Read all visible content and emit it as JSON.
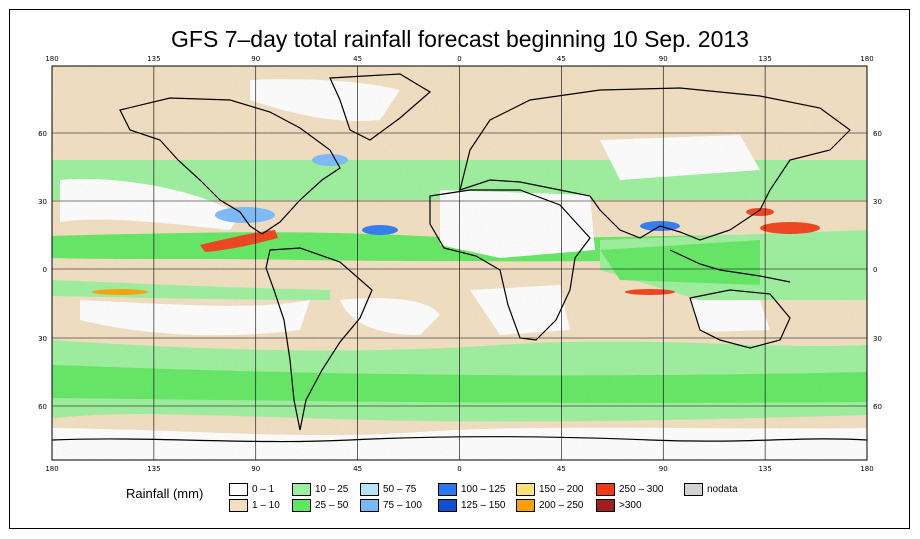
{
  "title": "GFS 7–day total rainfall forecast beginning 10 Sep. 2013",
  "axes": {
    "lon_labels": [
      "180",
      "135",
      "90",
      "45",
      "0",
      "45",
      "90",
      "135",
      "180"
    ],
    "lat_labels": [
      "60",
      "30",
      "0",
      "30",
      "60"
    ]
  },
  "legend": {
    "title": "Rainfall (mm)",
    "items": [
      {
        "label": "0 – 1",
        "color": "#ffffff"
      },
      {
        "label": "1 – 10",
        "color": "#f3dfc0"
      },
      {
        "label": "10 – 25",
        "color": "#9af09a"
      },
      {
        "label": "25 – 50",
        "color": "#5ee85e"
      },
      {
        "label": "50 – 75",
        "color": "#b4e4fa"
      },
      {
        "label": "75 – 100",
        "color": "#78b9fa"
      },
      {
        "label": "100 – 125",
        "color": "#2a78f0"
      },
      {
        "label": "125 – 150",
        "color": "#1150cc"
      },
      {
        "label": "150 – 200",
        "color": "#fce07a"
      },
      {
        "label": "200 – 250",
        "color": "#fca000"
      },
      {
        "label": "250 – 300",
        "color": "#f03c14"
      },
      {
        "label": ">300",
        "color": "#a01e1e"
      },
      {
        "label": "nodata",
        "color": "#d2d2d2"
      }
    ]
  }
}
